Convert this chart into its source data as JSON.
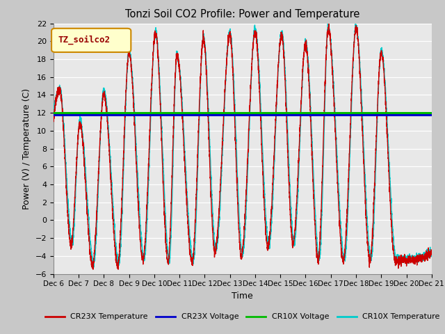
{
  "title": "Tonzi Soil CO2 Profile: Power and Temperature",
  "xlabel": "Time",
  "ylabel": "Power (V) / Temperature (C)",
  "ylim": [
    -6,
    22
  ],
  "yticks": [
    -6,
    -4,
    -2,
    0,
    2,
    4,
    6,
    8,
    10,
    12,
    14,
    16,
    18,
    20,
    22
  ],
  "xtick_labels": [
    "Dec 6",
    "Dec 7",
    "Dec 8",
    "Dec 9",
    "Dec 10",
    "Dec 11",
    "Dec 12",
    "Dec 13",
    "Dec 14",
    "Dec 15",
    "Dec 16",
    "Dec 17",
    "Dec 18",
    "Dec 19",
    "Dec 20",
    "Dec 21"
  ],
  "cr23x_voltage": 11.8,
  "cr10x_voltage": 12.05,
  "plot_bg_color": "#e8e8e8",
  "fig_bg_color": "#c8c8c8",
  "cr23x_temp_color": "#cc0000",
  "cr23x_volt_color": "#0000cc",
  "cr10x_volt_color": "#00bb00",
  "cr10x_temp_color": "#00cccc",
  "legend_label": "TZ_soilco2",
  "legend_bg": "#ffffcc",
  "legend_border": "#cc8800",
  "peak_heights": [
    14.5,
    10.8,
    14.1,
    18.7,
    21.0,
    18.5,
    20.3,
    20.7,
    21.0,
    20.7,
    19.7,
    21.5,
    21.5,
    18.7
  ],
  "trough_values": [
    -2.8,
    -5.0,
    -5.0,
    -4.5,
    -4.7,
    -4.8,
    -3.5,
    -4.0,
    -3.0,
    -2.7,
    -4.5,
    -4.5,
    -4.5,
    -4.5
  ],
  "peak_times": [
    0.25,
    1.05,
    2.0,
    3.0,
    4.05,
    4.9,
    5.95,
    7.0,
    8.0,
    9.05,
    10.0,
    10.9,
    12.0,
    13.0
  ],
  "trough_times": [
    0.7,
    1.55,
    2.55,
    3.55,
    4.55,
    5.5,
    6.4,
    7.45,
    8.5,
    9.5,
    10.5,
    11.5,
    12.55,
    13.55
  ]
}
